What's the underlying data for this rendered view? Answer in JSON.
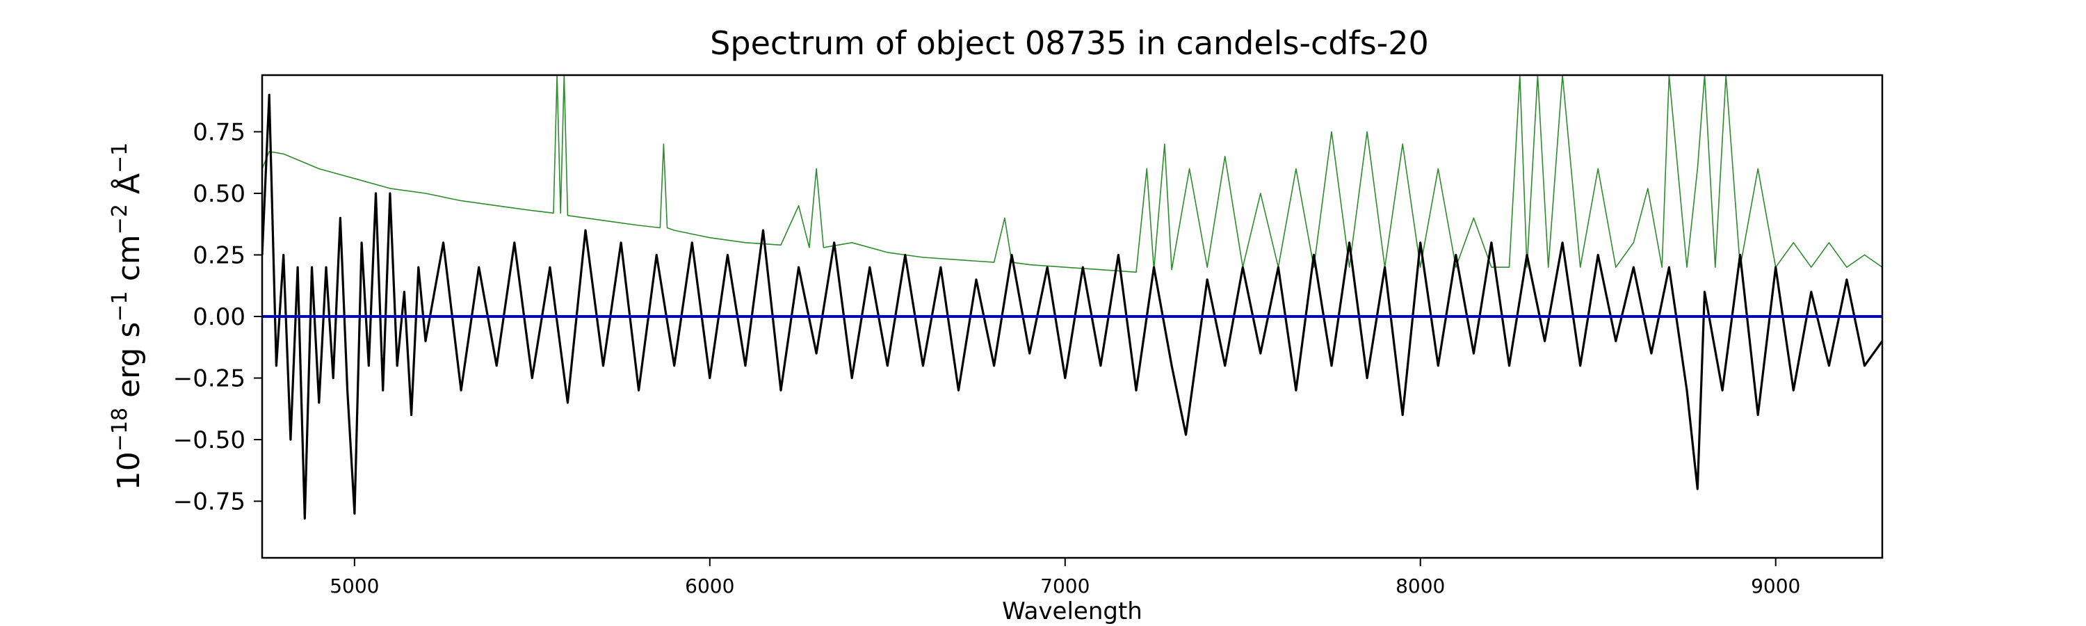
{
  "chart_data": {
    "type": "line",
    "title": "Spectrum of object 08735 in candels-cdfs-20",
    "xlabel": "Wavelength",
    "ylabel": {
      "base": "10",
      "exp": "−18",
      "p1": " erg s",
      "e1": "−1",
      "p2": " cm",
      "e2": "−2",
      "p3": " Å",
      "e3": "−1"
    },
    "xlim": [
      4740,
      9300
    ],
    "ylim": [
      -0.98,
      0.98
    ],
    "x_ticks": [
      5000,
      6000,
      7000,
      8000,
      9000
    ],
    "y_ticks": [
      -0.75,
      -0.5,
      -0.25,
      0.0,
      0.25,
      0.5,
      0.75
    ],
    "y_tick_labels": [
      "−0.75",
      "−0.50",
      "−0.25",
      "0.00",
      "0.25",
      "0.50",
      "0.75"
    ],
    "grid": false,
    "colors": {
      "observed": "#000000",
      "model": "#2e8b2e",
      "zero": "#0000cc"
    },
    "series": [
      {
        "key": "observed",
        "x": [
          4740,
          4760,
          4780,
          4800,
          4820,
          4840,
          4860,
          4880,
          4900,
          4920,
          4940,
          4960,
          4980,
          5000,
          5020,
          5040,
          5060,
          5080,
          5100,
          5120,
          5140,
          5160,
          5180,
          5200,
          5250,
          5300,
          5350,
          5400,
          5450,
          5500,
          5550,
          5600,
          5650,
          5700,
          5750,
          5800,
          5850,
          5900,
          5950,
          6000,
          6050,
          6100,
          6150,
          6200,
          6250,
          6300,
          6350,
          6400,
          6450,
          6500,
          6550,
          6600,
          6650,
          6700,
          6750,
          6800,
          6850,
          6900,
          6950,
          7000,
          7050,
          7100,
          7150,
          7200,
          7250,
          7300,
          7340,
          7400,
          7450,
          7500,
          7550,
          7600,
          7650,
          7700,
          7750,
          7800,
          7850,
          7900,
          7950,
          8000,
          8050,
          8100,
          8150,
          8200,
          8250,
          8300,
          8350,
          8400,
          8450,
          8500,
          8550,
          8600,
          8650,
          8700,
          8750,
          8780,
          8800,
          8850,
          8900,
          8950,
          9000,
          9050,
          9100,
          9150,
          9200,
          9250,
          9300
        ],
        "y": [
          0.25,
          0.9,
          -0.2,
          0.25,
          -0.5,
          0.2,
          -0.82,
          0.2,
          -0.35,
          0.2,
          -0.25,
          0.4,
          -0.3,
          -0.8,
          0.3,
          -0.2,
          0.5,
          -0.3,
          0.5,
          -0.2,
          0.1,
          -0.4,
          0.2,
          -0.1,
          0.3,
          -0.3,
          0.2,
          -0.2,
          0.3,
          -0.25,
          0.2,
          -0.35,
          0.35,
          -0.2,
          0.3,
          -0.3,
          0.25,
          -0.2,
          0.3,
          -0.25,
          0.25,
          -0.2,
          0.35,
          -0.3,
          0.2,
          -0.15,
          0.3,
          -0.25,
          0.2,
          -0.2,
          0.25,
          -0.2,
          0.2,
          -0.3,
          0.15,
          -0.2,
          0.25,
          -0.15,
          0.2,
          -0.25,
          0.2,
          -0.2,
          0.25,
          -0.3,
          0.2,
          -0.2,
          -0.48,
          0.15,
          -0.2,
          0.2,
          -0.15,
          0.2,
          -0.3,
          0.25,
          -0.2,
          0.3,
          -0.25,
          0.2,
          -0.4,
          0.3,
          -0.2,
          0.25,
          -0.15,
          0.3,
          -0.2,
          0.25,
          -0.1,
          0.3,
          -0.2,
          0.25,
          -0.1,
          0.2,
          -0.15,
          0.2,
          -0.3,
          -0.7,
          0.1,
          -0.3,
          0.25,
          -0.4,
          0.2,
          -0.3,
          0.1,
          -0.2,
          0.15,
          -0.2,
          -0.1
        ]
      },
      {
        "key": "model",
        "x": [
          4740,
          4760,
          4800,
          4850,
          4900,
          5000,
          5100,
          5200,
          5300,
          5400,
          5500,
          5560,
          5570,
          5580,
          5590,
          5600,
          5700,
          5800,
          5860,
          5870,
          5880,
          5900,
          6000,
          6100,
          6200,
          6250,
          6280,
          6300,
          6320,
          6400,
          6500,
          6600,
          6700,
          6800,
          6830,
          6850,
          6900,
          7000,
          7100,
          7200,
          7230,
          7250,
          7280,
          7300,
          7350,
          7400,
          7450,
          7500,
          7550,
          7600,
          7650,
          7700,
          7750,
          7800,
          7850,
          7900,
          7950,
          8000,
          8050,
          8100,
          8150,
          8200,
          8250,
          8280,
          8300,
          8330,
          8360,
          8400,
          8450,
          8500,
          8550,
          8600,
          8640,
          8680,
          8700,
          8750,
          8780,
          8800,
          8830,
          8860,
          8900,
          8950,
          9000,
          9050,
          9100,
          9150,
          9200,
          9250,
          9300
        ],
        "y": [
          0.6,
          0.67,
          0.66,
          0.63,
          0.6,
          0.56,
          0.52,
          0.5,
          0.47,
          0.45,
          0.43,
          0.42,
          0.98,
          0.42,
          0.98,
          0.41,
          0.39,
          0.37,
          0.36,
          0.7,
          0.36,
          0.35,
          0.32,
          0.3,
          0.29,
          0.45,
          0.28,
          0.6,
          0.28,
          0.3,
          0.26,
          0.24,
          0.23,
          0.22,
          0.4,
          0.22,
          0.21,
          0.2,
          0.19,
          0.18,
          0.6,
          0.19,
          0.7,
          0.19,
          0.6,
          0.2,
          0.65,
          0.2,
          0.5,
          0.2,
          0.6,
          0.2,
          0.75,
          0.2,
          0.75,
          0.2,
          0.7,
          0.2,
          0.6,
          0.2,
          0.4,
          0.2,
          0.2,
          0.98,
          0.2,
          0.98,
          0.2,
          0.98,
          0.2,
          0.6,
          0.2,
          0.3,
          0.52,
          0.2,
          0.98,
          0.2,
          0.6,
          0.98,
          0.2,
          0.98,
          0.2,
          0.6,
          0.2,
          0.3,
          0.2,
          0.3,
          0.2,
          0.25,
          0.2
        ]
      },
      {
        "key": "zero",
        "x": [
          4740,
          9300
        ],
        "y": [
          0,
          0
        ]
      }
    ]
  }
}
